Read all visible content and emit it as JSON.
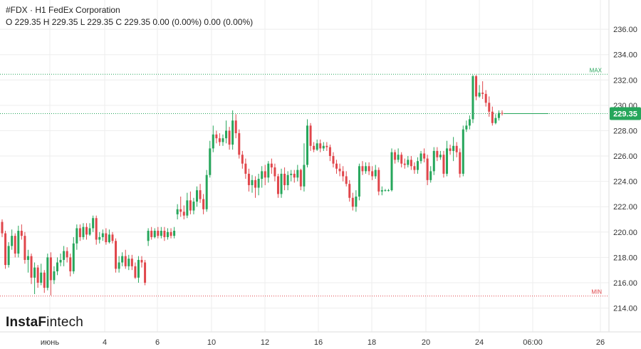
{
  "legend": {
    "title": "#FDX · H1 FedEx Corporation",
    "ohlc": "O 229.35 H 229.35 L 229.35 C 229.35 0.00 (0.00%) 0.00 (0.00%)"
  },
  "logo": {
    "bold": "InstaF",
    "rest": "intech"
  },
  "colors": {
    "up": "#26a65b",
    "down": "#e0464b",
    "grid": "#eeeeee",
    "max_line": "#26a65b",
    "min_line": "#e0464b",
    "price_bg": "#26a65b"
  },
  "chart_data": {
    "type": "candlestick",
    "title": "#FDX · H1 FedEx Corporation",
    "y_axis": {
      "ticks": [
        "236.00",
        "234.00",
        "232.00",
        "230.00",
        "228.00",
        "226.00",
        "224.00",
        "222.00",
        "220.00",
        "218.00",
        "216.00",
        "214.00"
      ],
      "ylim": [
        213.3,
        237.3
      ],
      "position": "right"
    },
    "x_axis": {
      "ticks": [
        "июнь",
        "4",
        "6",
        "10",
        "12",
        "16",
        "18",
        "20",
        "24",
        "06:00",
        "26"
      ]
    },
    "max_label": "MAX",
    "max_value": 232.45,
    "min_label": "MIN",
    "min_value": 214.95,
    "current_price": 229.35,
    "current_price_label": "229.35",
    "candles": [
      [
        220.8,
        219.9,
        221.0,
        219.6
      ],
      [
        219.9,
        217.4,
        220.1,
        217.1
      ],
      [
        217.4,
        218.9,
        219.2,
        217.2
      ],
      [
        218.9,
        219.7,
        220.2,
        218.6
      ],
      [
        219.7,
        218.3,
        219.9,
        218.0
      ],
      [
        218.3,
        220.1,
        220.5,
        218.0
      ],
      [
        220.1,
        219.7,
        220.6,
        219.4
      ],
      [
        219.7,
        217.8,
        220.0,
        217.5
      ],
      [
        217.8,
        218.1,
        218.6,
        216.8
      ],
      [
        218.1,
        216.4,
        218.3,
        215.9
      ],
      [
        216.4,
        217.2,
        217.6,
        215.1
      ],
      [
        217.2,
        216.0,
        217.4,
        215.6
      ],
      [
        216.0,
        216.8,
        217.5,
        215.8
      ],
      [
        216.8,
        215.6,
        217.0,
        215.2
      ],
      [
        215.6,
        218.0,
        218.3,
        215.4
      ],
      [
        218.0,
        216.2,
        218.4,
        215.0
      ],
      [
        216.2,
        216.9,
        217.3,
        215.9
      ],
      [
        216.9,
        217.6,
        218.0,
        216.6
      ],
      [
        217.6,
        217.8,
        218.3,
        217.3
      ],
      [
        217.8,
        218.5,
        218.9,
        217.3
      ],
      [
        218.5,
        218.0,
        218.8,
        217.6
      ],
      [
        218.0,
        216.9,
        218.3,
        216.5
      ],
      [
        216.9,
        219.1,
        219.6,
        216.7
      ],
      [
        219.1,
        220.3,
        220.6,
        218.6
      ],
      [
        220.3,
        219.6,
        220.6,
        219.3
      ],
      [
        219.6,
        220.4,
        220.7,
        219.4
      ],
      [
        220.4,
        219.8,
        220.7,
        219.4
      ],
      [
        219.8,
        220.3,
        220.7,
        219.7
      ],
      [
        220.3,
        221.1,
        221.3,
        220.0
      ],
      [
        221.1,
        219.4,
        221.3,
        219.0
      ],
      [
        219.4,
        219.6,
        220.0,
        219.1
      ],
      [
        219.6,
        219.9,
        220.2,
        219.3
      ],
      [
        219.9,
        219.2,
        220.3,
        219.0
      ],
      [
        219.2,
        219.8,
        220.2,
        219.1
      ],
      [
        219.8,
        219.3,
        220.0,
        219.1
      ],
      [
        219.3,
        217.1,
        219.5,
        216.8
      ],
      [
        217.1,
        217.6,
        218.1,
        216.8
      ],
      [
        217.6,
        218.1,
        218.4,
        217.3
      ],
      [
        218.1,
        217.3,
        218.6,
        217.1
      ],
      [
        217.3,
        217.9,
        218.2,
        217.0
      ],
      [
        217.9,
        217.3,
        218.2,
        217.0
      ],
      [
        217.3,
        216.4,
        217.6,
        216.3
      ],
      [
        216.4,
        217.8,
        218.1,
        216.0
      ],
      [
        217.8,
        217.6,
        218.1,
        217.2
      ],
      [
        217.6,
        216.0,
        217.8,
        215.8
      ],
      [
        219.3,
        220.1,
        220.3,
        218.9
      ],
      [
        220.1,
        219.6,
        220.4,
        219.4
      ],
      [
        219.6,
        220.1,
        220.3,
        219.5
      ],
      [
        220.1,
        219.7,
        220.4,
        219.5
      ],
      [
        219.7,
        220.1,
        220.4,
        219.5
      ],
      [
        220.1,
        219.6,
        220.4,
        219.3
      ],
      [
        219.6,
        220.0,
        220.3,
        219.4
      ],
      [
        220.0,
        219.7,
        220.3,
        219.5
      ],
      [
        219.7,
        220.1,
        220.4,
        219.5
      ],
      [
        221.4,
        221.8,
        222.2,
        221.0
      ],
      [
        221.8,
        221.6,
        222.8,
        221.2
      ],
      [
        221.6,
        221.3,
        222.1,
        221.0
      ],
      [
        221.3,
        222.5,
        223.1,
        221.1
      ],
      [
        222.5,
        221.7,
        223.2,
        221.4
      ],
      [
        221.7,
        222.4,
        222.7,
        221.4
      ],
      [
        222.4,
        223.3,
        223.6,
        222.0
      ],
      [
        223.3,
        222.6,
        223.8,
        222.3
      ],
      [
        222.6,
        221.8,
        223.0,
        221.4
      ],
      [
        221.8,
        224.5,
        224.9,
        221.6
      ],
      [
        224.5,
        226.6,
        227.2,
        224.3
      ],
      [
        226.6,
        227.7,
        228.4,
        226.3
      ],
      [
        227.7,
        227.4,
        228.0,
        227.0
      ],
      [
        227.4,
        227.1,
        227.8,
        226.8
      ],
      [
        227.1,
        227.4,
        227.7,
        226.8
      ],
      [
        227.4,
        228.0,
        228.8,
        227.0
      ],
      [
        228.0,
        226.9,
        228.3,
        226.5
      ],
      [
        226.9,
        228.8,
        229.6,
        226.5
      ],
      [
        228.8,
        227.8,
        229.3,
        227.4
      ],
      [
        227.8,
        226.1,
        228.1,
        225.8
      ],
      [
        226.1,
        225.4,
        226.4,
        225.0
      ],
      [
        225.4,
        224.6,
        225.8,
        224.2
      ],
      [
        224.6,
        223.7,
        225.0,
        223.2
      ],
      [
        223.7,
        224.1,
        224.5,
        223.1
      ],
      [
        224.1,
        223.5,
        224.4,
        222.7
      ],
      [
        223.5,
        224.2,
        224.6,
        222.9
      ],
      [
        224.2,
        224.8,
        225.2,
        223.5
      ],
      [
        224.8,
        224.3,
        225.3,
        223.7
      ],
      [
        224.3,
        225.4,
        225.6,
        223.9
      ],
      [
        225.4,
        225.1,
        225.8,
        224.6
      ],
      [
        225.1,
        224.4,
        225.4,
        224.0
      ],
      [
        224.4,
        223.0,
        224.6,
        222.7
      ],
      [
        223.0,
        224.6,
        225.0,
        222.7
      ],
      [
        224.6,
        223.7,
        225.1,
        223.3
      ],
      [
        223.7,
        224.5,
        224.8,
        223.3
      ],
      [
        224.5,
        224.6,
        224.9,
        224.0
      ],
      [
        224.6,
        224.3,
        224.9,
        223.9
      ],
      [
        224.3,
        224.9,
        225.3,
        224.0
      ],
      [
        224.9,
        223.6,
        225.0,
        223.3
      ],
      [
        223.6,
        225.3,
        227.0,
        223.2
      ],
      [
        225.3,
        228.4,
        228.9,
        225.1
      ],
      [
        228.4,
        226.8,
        228.6,
        226.4
      ],
      [
        226.8,
        226.5,
        227.1,
        226.3
      ],
      [
        226.5,
        227.0,
        227.3,
        226.4
      ],
      [
        227.0,
        226.6,
        227.3,
        226.3
      ],
      [
        226.6,
        226.8,
        227.1,
        226.4
      ],
      [
        226.8,
        226.7,
        227.1,
        226.4
      ],
      [
        226.7,
        226.0,
        226.9,
        225.6
      ],
      [
        226.0,
        225.4,
        226.3,
        225.1
      ],
      [
        225.4,
        225.0,
        225.7,
        224.6
      ],
      [
        225.0,
        224.8,
        225.4,
        224.4
      ],
      [
        224.8,
        224.4,
        225.2,
        224.0
      ],
      [
        224.4,
        223.8,
        224.8,
        223.6
      ],
      [
        223.8,
        222.7,
        224.1,
        222.4
      ],
      [
        222.7,
        222.0,
        223.1,
        221.7
      ],
      [
        222.0,
        222.8,
        223.3,
        221.6
      ],
      [
        222.8,
        225.2,
        225.4,
        222.5
      ],
      [
        225.2,
        224.8,
        225.6,
        224.5
      ],
      [
        224.8,
        225.2,
        225.5,
        224.6
      ],
      [
        225.2,
        224.8,
        225.5,
        224.5
      ],
      [
        224.8,
        224.4,
        225.2,
        224.1
      ],
      [
        224.4,
        224.9,
        225.3,
        224.2
      ],
      [
        224.9,
        223.2,
        225.1,
        222.9
      ],
      [
        223.2,
        223.3,
        223.6,
        222.9
      ],
      [
        223.3,
        223.3,
        223.4,
        223.2
      ],
      [
        223.3,
        223.3,
        223.4,
        223.2
      ],
      [
        223.3,
        226.3,
        226.6,
        223.2
      ],
      [
        226.3,
        225.7,
        226.5,
        225.4
      ],
      [
        225.7,
        226.1,
        226.6,
        225.5
      ],
      [
        226.1,
        225.4,
        226.3,
        225.1
      ],
      [
        225.4,
        225.3,
        225.8,
        225.0
      ],
      [
        225.3,
        225.7,
        226.0,
        225.1
      ],
      [
        225.7,
        225.2,
        226.0,
        224.9
      ],
      [
        225.2,
        224.9,
        225.5,
        224.6
      ],
      [
        224.9,
        225.6,
        225.9,
        224.6
      ],
      [
        225.6,
        226.2,
        226.4,
        225.4
      ],
      [
        226.2,
        225.8,
        226.6,
        225.5
      ],
      [
        225.8,
        224.1,
        226.1,
        223.7
      ],
      [
        224.1,
        224.8,
        225.2,
        223.9
      ],
      [
        224.8,
        226.4,
        226.7,
        224.5
      ],
      [
        226.4,
        225.9,
        226.7,
        225.6
      ],
      [
        225.9,
        226.1,
        226.4,
        225.7
      ],
      [
        226.1,
        224.6,
        226.4,
        224.3
      ],
      [
        224.6,
        226.6,
        227.2,
        224.4
      ],
      [
        226.6,
        226.4,
        226.9,
        226.1
      ],
      [
        226.4,
        226.8,
        227.5,
        225.6
      ],
      [
        226.8,
        226.3,
        227.1,
        225.9
      ],
      [
        226.3,
        224.6,
        226.6,
        224.3
      ],
      [
        224.6,
        228.1,
        228.4,
        224.4
      ],
      [
        228.1,
        228.4,
        228.8,
        227.9
      ],
      [
        228.4,
        228.9,
        229.2,
        228.1
      ],
      [
        228.9,
        232.3,
        232.4,
        228.6
      ],
      [
        232.3,
        230.7,
        232.4,
        230.4
      ],
      [
        230.7,
        231.0,
        231.6,
        230.6
      ],
      [
        231.0,
        230.9,
        231.9,
        230.5
      ],
      [
        230.9,
        230.2,
        231.2,
        229.9
      ],
      [
        230.2,
        229.5,
        230.7,
        229.1
      ],
      [
        229.5,
        228.6,
        229.9,
        228.4
      ],
      [
        228.6,
        229.0,
        229.3,
        228.5
      ],
      [
        229.0,
        229.4,
        229.6,
        228.8
      ],
      [
        229.4,
        229.35,
        229.6,
        229.2
      ]
    ],
    "grid": true,
    "legend_position": "top-left"
  }
}
